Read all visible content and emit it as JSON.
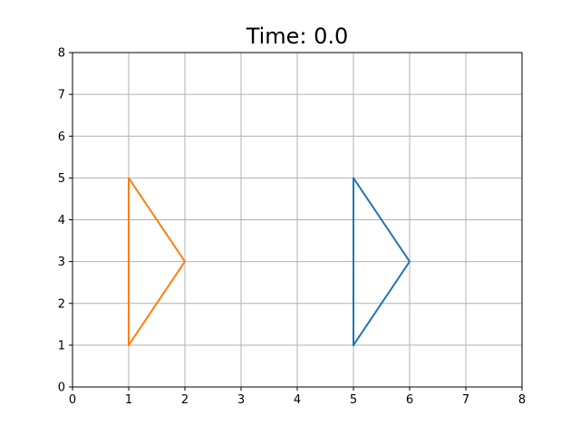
{
  "chart_data": {
    "type": "line",
    "title": "Time: 0.0",
    "xlabel": "",
    "ylabel": "",
    "xlim": [
      0,
      8
    ],
    "ylim": [
      0,
      8
    ],
    "xticks": [
      0,
      1,
      2,
      3,
      4,
      5,
      6,
      7,
      8
    ],
    "yticks": [
      0,
      1,
      2,
      3,
      4,
      5,
      6,
      7,
      8
    ],
    "grid": true,
    "series": [
      {
        "color": "#1f77b4",
        "x": [
          5,
          5,
          6,
          5
        ],
        "y": [
          1,
          5,
          3,
          1
        ]
      },
      {
        "color": "#ff7f0e",
        "x": [
          1,
          1,
          2,
          1
        ],
        "y": [
          1,
          5,
          3,
          1
        ]
      }
    ]
  }
}
